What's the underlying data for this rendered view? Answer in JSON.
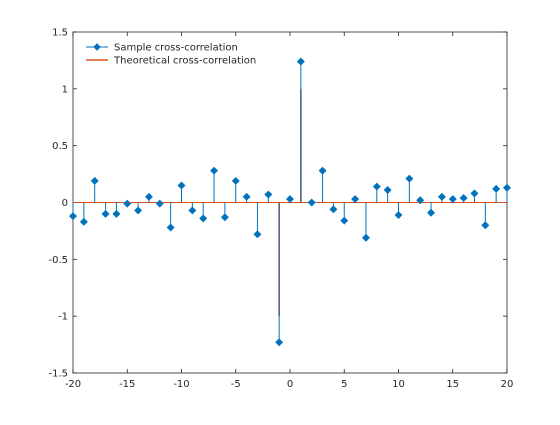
{
  "chart_data": {
    "type": "stem",
    "title": "",
    "xlabel": "",
    "ylabel": "",
    "xlim": [
      -20,
      20
    ],
    "ylim": [
      -1.5,
      1.5
    ],
    "xticks": [
      -20,
      -15,
      -10,
      -5,
      0,
      5,
      10,
      15,
      20
    ],
    "yticks": [
      -1.5,
      -1,
      -0.5,
      0,
      0.5,
      1,
      1.5
    ],
    "xtick_labels": [
      "-20",
      "-15",
      "-10",
      "-5",
      "0",
      "5",
      "10",
      "15",
      "20"
    ],
    "ytick_labels": [
      "-1.5",
      "-1",
      "-0.5",
      "0",
      "0.5",
      "1",
      "1.5"
    ],
    "grid": false,
    "legend_position": "top-left",
    "series": [
      {
        "name": "Sample cross-correlation",
        "color": "#0072BD",
        "marker": "diamond-filled",
        "x": [
          -20,
          -19,
          -18,
          -17,
          -16,
          -15,
          -14,
          -13,
          -12,
          -11,
          -10,
          -9,
          -8,
          -7,
          -6,
          -5,
          -4,
          -3,
          -2,
          -1,
          0,
          1,
          2,
          3,
          4,
          5,
          6,
          7,
          8,
          9,
          10,
          11,
          12,
          13,
          14,
          15,
          16,
          17,
          18,
          19,
          20
        ],
        "y": [
          -0.12,
          -0.17,
          0.19,
          -0.1,
          -0.1,
          -0.01,
          -0.07,
          0.05,
          -0.01,
          -0.22,
          0.15,
          -0.07,
          -0.14,
          0.28,
          -0.13,
          0.19,
          0.05,
          -0.28,
          0.07,
          -1.23,
          0.03,
          1.24,
          0.0,
          0.28,
          -0.06,
          -0.16,
          0.03,
          -0.31,
          0.14,
          0.11,
          -0.11,
          0.21,
          0.02,
          -0.09,
          0.05,
          0.03,
          0.04,
          0.08,
          -0.2,
          0.12,
          0.13
        ]
      },
      {
        "name": "Theoretical cross-correlation",
        "color": "#D95319",
        "marker": "none",
        "x": [
          -20,
          -19,
          -18,
          -17,
          -16,
          -15,
          -14,
          -13,
          -12,
          -11,
          -10,
          -9,
          -8,
          -7,
          -6,
          -5,
          -4,
          -3,
          -2,
          -1,
          0,
          1,
          2,
          3,
          4,
          5,
          6,
          7,
          8,
          9,
          10,
          11,
          12,
          13,
          14,
          15,
          16,
          17,
          18,
          19,
          20
        ],
        "y": [
          0,
          0,
          0,
          0,
          0,
          0,
          0,
          0,
          0,
          0,
          0,
          0,
          0,
          0,
          0,
          0,
          0,
          0,
          0,
          -1,
          0,
          1,
          0,
          0,
          0,
          0,
          0,
          0,
          0,
          0,
          0,
          0,
          0,
          0,
          0,
          0,
          0,
          0,
          0,
          0,
          0
        ]
      }
    ]
  }
}
